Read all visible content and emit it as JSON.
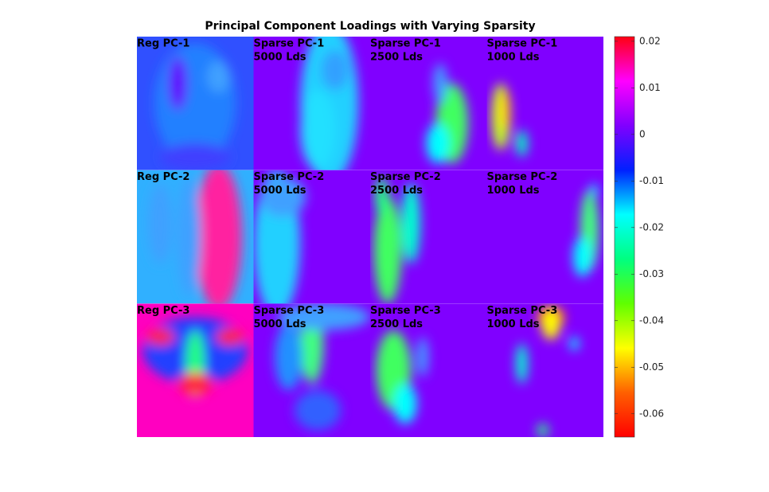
{
  "chart_data": {
    "type": "image-grid",
    "title": "Principal Component Loadings with Varying Sparsity",
    "panels": [
      {
        "label": [
          "Reg PC-1"
        ]
      },
      {
        "label": [
          "Sparse PC-1",
          "5000 Lds"
        ]
      },
      {
        "label": [
          "Sparse PC-1",
          "2500 Lds"
        ]
      },
      {
        "label": [
          "Sparse PC-1",
          "1000 Lds"
        ]
      },
      {
        "label": [
          "Reg PC-2"
        ]
      },
      {
        "label": [
          "Sparse PC-2",
          "5000 Lds"
        ]
      },
      {
        "label": [
          "Sparse PC-2",
          "2500 Lds"
        ]
      },
      {
        "label": [
          "Sparse PC-2",
          "1000 Lds"
        ]
      },
      {
        "label": [
          "Reg PC-3"
        ]
      },
      {
        "label": [
          "Sparse PC-3",
          "5000 Lds"
        ]
      },
      {
        "label": [
          "Sparse PC-3",
          "2500 Lds"
        ]
      },
      {
        "label": [
          "Sparse PC-3",
          "1000 Lds"
        ]
      }
    ],
    "clim": [
      -0.065,
      0.021
    ],
    "cticks": [
      0.02,
      0.01,
      0,
      -0.01,
      -0.02,
      -0.03,
      -0.04,
      -0.05,
      -0.06
    ],
    "colormap": [
      "#ff0010",
      "#ff00ff",
      "#8000ff",
      "#0020ff",
      "#00ffff",
      "#00ff80",
      "#60ff00",
      "#ffff00",
      "#ff6000",
      "#ff0000"
    ]
  }
}
